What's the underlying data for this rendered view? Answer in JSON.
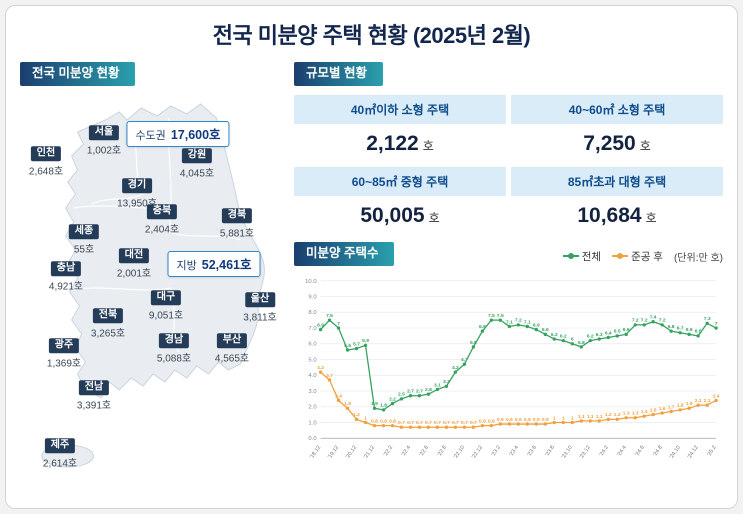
{
  "theme": {
    "navy": "#13264d",
    "ribbon_start": "#1b3e6f",
    "ribbon_end": "#2aa0ad",
    "chip_bg": "#243c58",
    "accent_blue": "#2f86c8",
    "header_cell_bg": "#d9ecf8",
    "header_cell_text": "#0f4c8c"
  },
  "page": {
    "title": "전국 미분양 주택 현황 (2025년 2월)"
  },
  "map_panel": {
    "header": "전국 미분양 현황",
    "capital_box": {
      "label": "수도권",
      "value": "17,600호"
    },
    "local_box": {
      "label": "지방",
      "value": "52,461호"
    },
    "regions": [
      {
        "name": "서울",
        "value": "1,002호"
      },
      {
        "name": "인천",
        "value": "2,648호"
      },
      {
        "name": "경기",
        "value": "13,950호"
      },
      {
        "name": "강원",
        "value": "4,045호"
      },
      {
        "name": "충북",
        "value": "2,404호"
      },
      {
        "name": "경북",
        "value": "5,881호"
      },
      {
        "name": "세종",
        "value": "55호"
      },
      {
        "name": "대전",
        "value": "2,001호"
      },
      {
        "name": "충남",
        "value": "4,921호"
      },
      {
        "name": "대구",
        "value": "9,051호"
      },
      {
        "name": "울산",
        "value": "3,811호"
      },
      {
        "name": "전북",
        "value": "3,265호"
      },
      {
        "name": "광주",
        "value": "1,369호"
      },
      {
        "name": "경남",
        "value": "5,088호"
      },
      {
        "name": "부산",
        "value": "4,565호"
      },
      {
        "name": "전남",
        "value": "3,391호"
      },
      {
        "name": "제주",
        "value": "2,614호"
      }
    ]
  },
  "size_panel": {
    "header": "규모별 현황",
    "cells": [
      {
        "label": "40㎡이하 소형 주택",
        "value": "2,122",
        "unit": "호"
      },
      {
        "label": "40~60㎡ 소형 주택",
        "value": "7,250",
        "unit": "호"
      },
      {
        "label": "60~85㎡ 중형 주택",
        "value": "50,005",
        "unit": "호"
      },
      {
        "label": "85㎡초과 대형 주택",
        "value": "10,684",
        "unit": "호"
      }
    ]
  },
  "chart_panel": {
    "header": "미분양 주택수",
    "unit_note": "(단위:만 호)"
  },
  "chart_data": {
    "type": "line",
    "title": "미분양 주택수",
    "unit": "만 호",
    "ylim": [
      0,
      10
    ],
    "grid": true,
    "legend_position": "top-right",
    "x_labels": [
      "'18.12",
      "",
      "'19.12",
      "",
      "'20.12",
      "",
      "'21.12",
      "",
      "'22.2",
      "",
      "'22.4",
      "",
      "'22.6",
      "",
      "'22.8",
      "",
      "'22.10",
      "",
      "'22.12",
      "",
      "'23.2",
      "",
      "'23.4",
      "",
      "'23.6",
      "",
      "'23.8",
      "",
      "'23.10",
      "",
      "'23.12",
      "",
      "'24.2",
      "",
      "'24.4",
      "",
      "'24.6",
      "",
      "'24.8",
      "",
      "'24.10",
      "",
      "'24.12",
      "",
      "'25.2"
    ],
    "series": [
      {
        "name": "전체",
        "color": "#35a25f",
        "values": [
          6.9,
          7.5,
          7.0,
          5.6,
          5.7,
          5.9,
          1.9,
          1.8,
          2.2,
          2.5,
          2.7,
          2.7,
          2.8,
          3.1,
          3.3,
          4.2,
          4.7,
          5.8,
          6.8,
          7.5,
          7.5,
          7.1,
          7.2,
          7.1,
          6.9,
          6.6,
          6.3,
          6.2,
          6.0,
          5.8,
          6.2,
          6.3,
          6.4,
          6.5,
          6.6,
          7.2,
          7.2,
          7.4,
          7.2,
          6.8,
          6.7,
          6.6,
          6.5,
          7.3,
          7.0
        ]
      },
      {
        "name": "준공 후",
        "color": "#f2a03d",
        "values": [
          4.2,
          3.7,
          2.4,
          1.9,
          1.2,
          1.0,
          0.8,
          0.8,
          0.8,
          0.7,
          0.7,
          0.7,
          0.7,
          0.7,
          0.7,
          0.7,
          0.7,
          0.7,
          0.8,
          0.8,
          0.9,
          0.9,
          0.9,
          0.9,
          0.9,
          0.9,
          1.0,
          1.0,
          1.0,
          1.1,
          1.1,
          1.1,
          1.2,
          1.2,
          1.3,
          1.3,
          1.4,
          1.5,
          1.6,
          1.7,
          1.8,
          1.9,
          2.1,
          2.1,
          2.4
        ]
      }
    ]
  }
}
